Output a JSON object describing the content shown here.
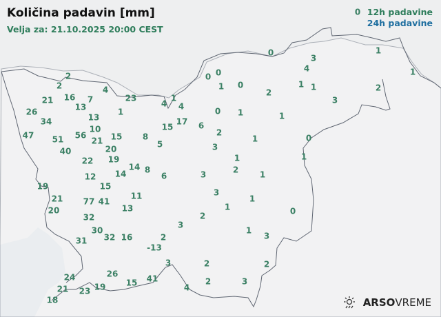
{
  "header": {
    "title": "Količina padavin [mm]",
    "valid_for": "Velja za: 21.10.2025 20:00 CEST"
  },
  "legend": {
    "label_12h": "12h padavine",
    "label_24h": "24h padavine",
    "color_12h": "#2e7d5b",
    "color_24h": "#1f6fa0"
  },
  "brand": {
    "icon": "sun-rain-icon",
    "name_bold": "ARSO",
    "name_light": "VREME"
  },
  "stations_12h": [
    "0",
    "0",
    "3",
    "1",
    "4",
    "1",
    "0",
    "0",
    "1",
    "0",
    "2",
    "1",
    "1",
    "2",
    "3",
    "0",
    "1",
    "1",
    "6",
    "2",
    "1",
    "0",
    "3",
    "1",
    "1",
    "2",
    "1",
    "3",
    "3",
    "1",
    "1",
    "2",
    "0",
    "1",
    "3",
    "2",
    "3",
    "2",
    "2",
    "3",
    "4",
    "2",
    "2",
    "4",
    "23",
    "4",
    "1",
    "4",
    "21",
    "16",
    "7",
    "13",
    "13",
    "1",
    "26",
    "34",
    "10",
    "15",
    "17",
    "47",
    "51",
    "56",
    "21",
    "15",
    "20",
    "19",
    "8",
    "5",
    "40",
    "22",
    "14",
    "14",
    "8",
    "6",
    "12",
    "19",
    "15",
    "21",
    "77",
    "41",
    "11",
    "13",
    "20",
    "32",
    "3",
    "30",
    "32",
    "16",
    "2",
    "31",
    "-13",
    "26",
    "41",
    "24",
    "21",
    "15",
    "23",
    "19",
    "18"
  ]
}
